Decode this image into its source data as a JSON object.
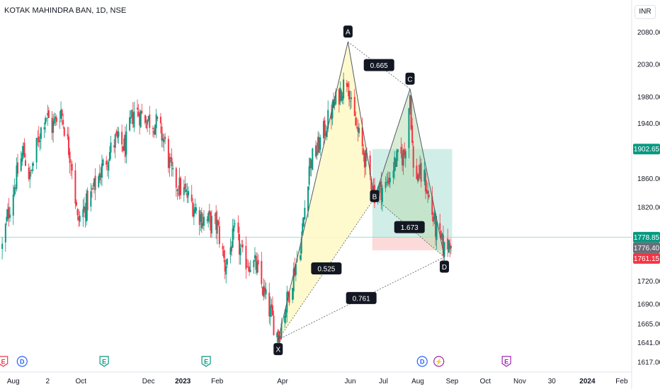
{
  "header": {
    "symbol_title": "KOTAK MAHINDRA BAN, 1D, NSE",
    "currency": "INR"
  },
  "colors": {
    "up": "#089981",
    "down": "#f23645",
    "pattern_fill": "#fff9c4",
    "pattern_fill_green": "#b9dfb4",
    "target_zone": "#c8ebe3",
    "stop_zone": "#fcd6d6",
    "price_line": "#9fdcd1",
    "last_price_tag": "#089981",
    "target_tag": "#089981",
    "prev_close_tag": "#6a6d78",
    "stop_tag": "#f23645",
    "axis_text": "#131722",
    "event_earnings": "#f23645",
    "event_dividend": "#2962ff",
    "event_split": "#089981",
    "event_future_earnings": "#9c27b0"
  },
  "chart_data": {
    "type": "candlestick",
    "interval": "1D",
    "y_scale": "log",
    "ylim": [
      1610,
      2100
    ],
    "xlim": [
      "2022-07-20",
      "2024-02-10"
    ],
    "y_ticks": [
      "2080.00",
      "2030.00",
      "1980.00",
      "1940.00",
      "1900.00",
      "1860.00",
      "1820.00",
      "1780.00",
      "1720.00",
      "1690.00",
      "1665.00",
      "1641.00",
      "1617.00"
    ],
    "x_ticks": [
      "Aug",
      "2",
      "Oct",
      "Dec",
      "2023",
      "Feb",
      "Apr",
      "Jun",
      "Jul",
      "Aug",
      "Sep",
      "Oct",
      "Nov",
      "30",
      "2024",
      "Feb"
    ],
    "price_path_keypoints": [
      {
        "d": "2022-07-22",
        "p": 1765
      },
      {
        "d": "2022-07-26",
        "p": 1800
      },
      {
        "d": "2022-08-01",
        "p": 1845
      },
      {
        "d": "2022-08-10",
        "p": 1900
      },
      {
        "d": "2022-08-16",
        "p": 1860
      },
      {
        "d": "2022-08-24",
        "p": 1920
      },
      {
        "d": "2022-08-30",
        "p": 1955
      },
      {
        "d": "2022-09-05",
        "p": 1935
      },
      {
        "d": "2022-09-13",
        "p": 1960
      },
      {
        "d": "2022-09-23",
        "p": 1880
      },
      {
        "d": "2022-09-28",
        "p": 1800
      },
      {
        "d": "2022-10-10",
        "p": 1835
      },
      {
        "d": "2022-10-20",
        "p": 1875
      },
      {
        "d": "2022-11-01",
        "p": 1915
      },
      {
        "d": "2022-11-10",
        "p": 1905
      },
      {
        "d": "2022-11-18",
        "p": 1960
      },
      {
        "d": "2022-12-01",
        "p": 1945
      },
      {
        "d": "2022-12-08",
        "p": 1940
      },
      {
        "d": "2022-12-15",
        "p": 1915
      },
      {
        "d": "2022-12-23",
        "p": 1860
      },
      {
        "d": "2023-01-05",
        "p": 1835
      },
      {
        "d": "2023-01-18",
        "p": 1805
      },
      {
        "d": "2023-02-01",
        "p": 1795
      },
      {
        "d": "2023-02-08",
        "p": 1740
      },
      {
        "d": "2023-02-17",
        "p": 1785
      },
      {
        "d": "2023-02-24",
        "p": 1750
      },
      {
        "d": "2023-03-08",
        "p": 1740
      },
      {
        "d": "2023-03-15",
        "p": 1705
      },
      {
        "d": "2023-03-28",
        "p": 1648
      },
      {
        "d": "2023-04-06",
        "p": 1700
      },
      {
        "d": "2023-04-18",
        "p": 1775
      },
      {
        "d": "2023-04-25",
        "p": 1880
      },
      {
        "d": "2023-05-03",
        "p": 1905
      },
      {
        "d": "2023-05-12",
        "p": 1945
      },
      {
        "d": "2023-05-22",
        "p": 1985
      },
      {
        "d": "2023-05-30",
        "p": 2010
      },
      {
        "d": "2023-06-02",
        "p": 1960
      },
      {
        "d": "2023-06-09",
        "p": 1920
      },
      {
        "d": "2023-06-16",
        "p": 1880
      },
      {
        "d": "2023-06-23",
        "p": 1840
      },
      {
        "d": "2023-07-03",
        "p": 1850
      },
      {
        "d": "2023-07-12",
        "p": 1885
      },
      {
        "d": "2023-07-20",
        "p": 1895
      },
      {
        "d": "2023-07-25",
        "p": 1985
      },
      {
        "d": "2023-07-28",
        "p": 1870
      },
      {
        "d": "2023-08-07",
        "p": 1860
      },
      {
        "d": "2023-08-17",
        "p": 1790
      },
      {
        "d": "2023-08-25",
        "p": 1762
      },
      {
        "d": "2023-08-31",
        "p": 1779
      }
    ],
    "harmonic_pattern": {
      "points": [
        {
          "label": "X",
          "date": "2023-03-28",
          "price": 1645
        },
        {
          "label": "A",
          "date": "2023-05-30",
          "price": 2065
        },
        {
          "label": "B",
          "date": "2023-06-23",
          "price": 1833
        },
        {
          "label": "C",
          "date": "2023-07-25",
          "price": 1992
        },
        {
          "label": "D",
          "date": "2023-08-25",
          "price": 1752
        }
      ],
      "ratios": [
        {
          "label": "0.525",
          "between": [
            "X",
            "B"
          ]
        },
        {
          "label": "0.665",
          "between": [
            "A",
            "C"
          ]
        },
        {
          "label": "1.673",
          "between": [
            "B",
            "D"
          ]
        },
        {
          "label": "0.761",
          "between": [
            "X",
            "D"
          ]
        }
      ]
    },
    "position": {
      "start": "2023-06-21",
      "end": "2023-09-01",
      "target": 1902.65,
      "entry": 1778.85,
      "stop": 1761.15
    },
    "price_tags": [
      {
        "value": "1902.65",
        "kind": "target"
      },
      {
        "value": "1778.85",
        "kind": "last"
      },
      {
        "value": "1776.40",
        "kind": "prev_close"
      },
      {
        "value": "1761.15",
        "kind": "stop"
      }
    ],
    "events": [
      {
        "date": "2022-07-23",
        "letter": "E",
        "kind": "earnings"
      },
      {
        "date": "2022-08-09",
        "letter": "D",
        "kind": "dividend"
      },
      {
        "date": "2022-10-22",
        "letter": "E",
        "kind": "split"
      },
      {
        "date": "2023-01-22",
        "letter": "E",
        "kind": "split"
      },
      {
        "date": "2023-08-05",
        "letter": "D",
        "kind": "dividend"
      },
      {
        "date": "2023-08-20",
        "letter": "⚡",
        "kind": "dividend_special"
      },
      {
        "date": "2023-10-20",
        "letter": "E",
        "kind": "future_earnings"
      }
    ]
  }
}
